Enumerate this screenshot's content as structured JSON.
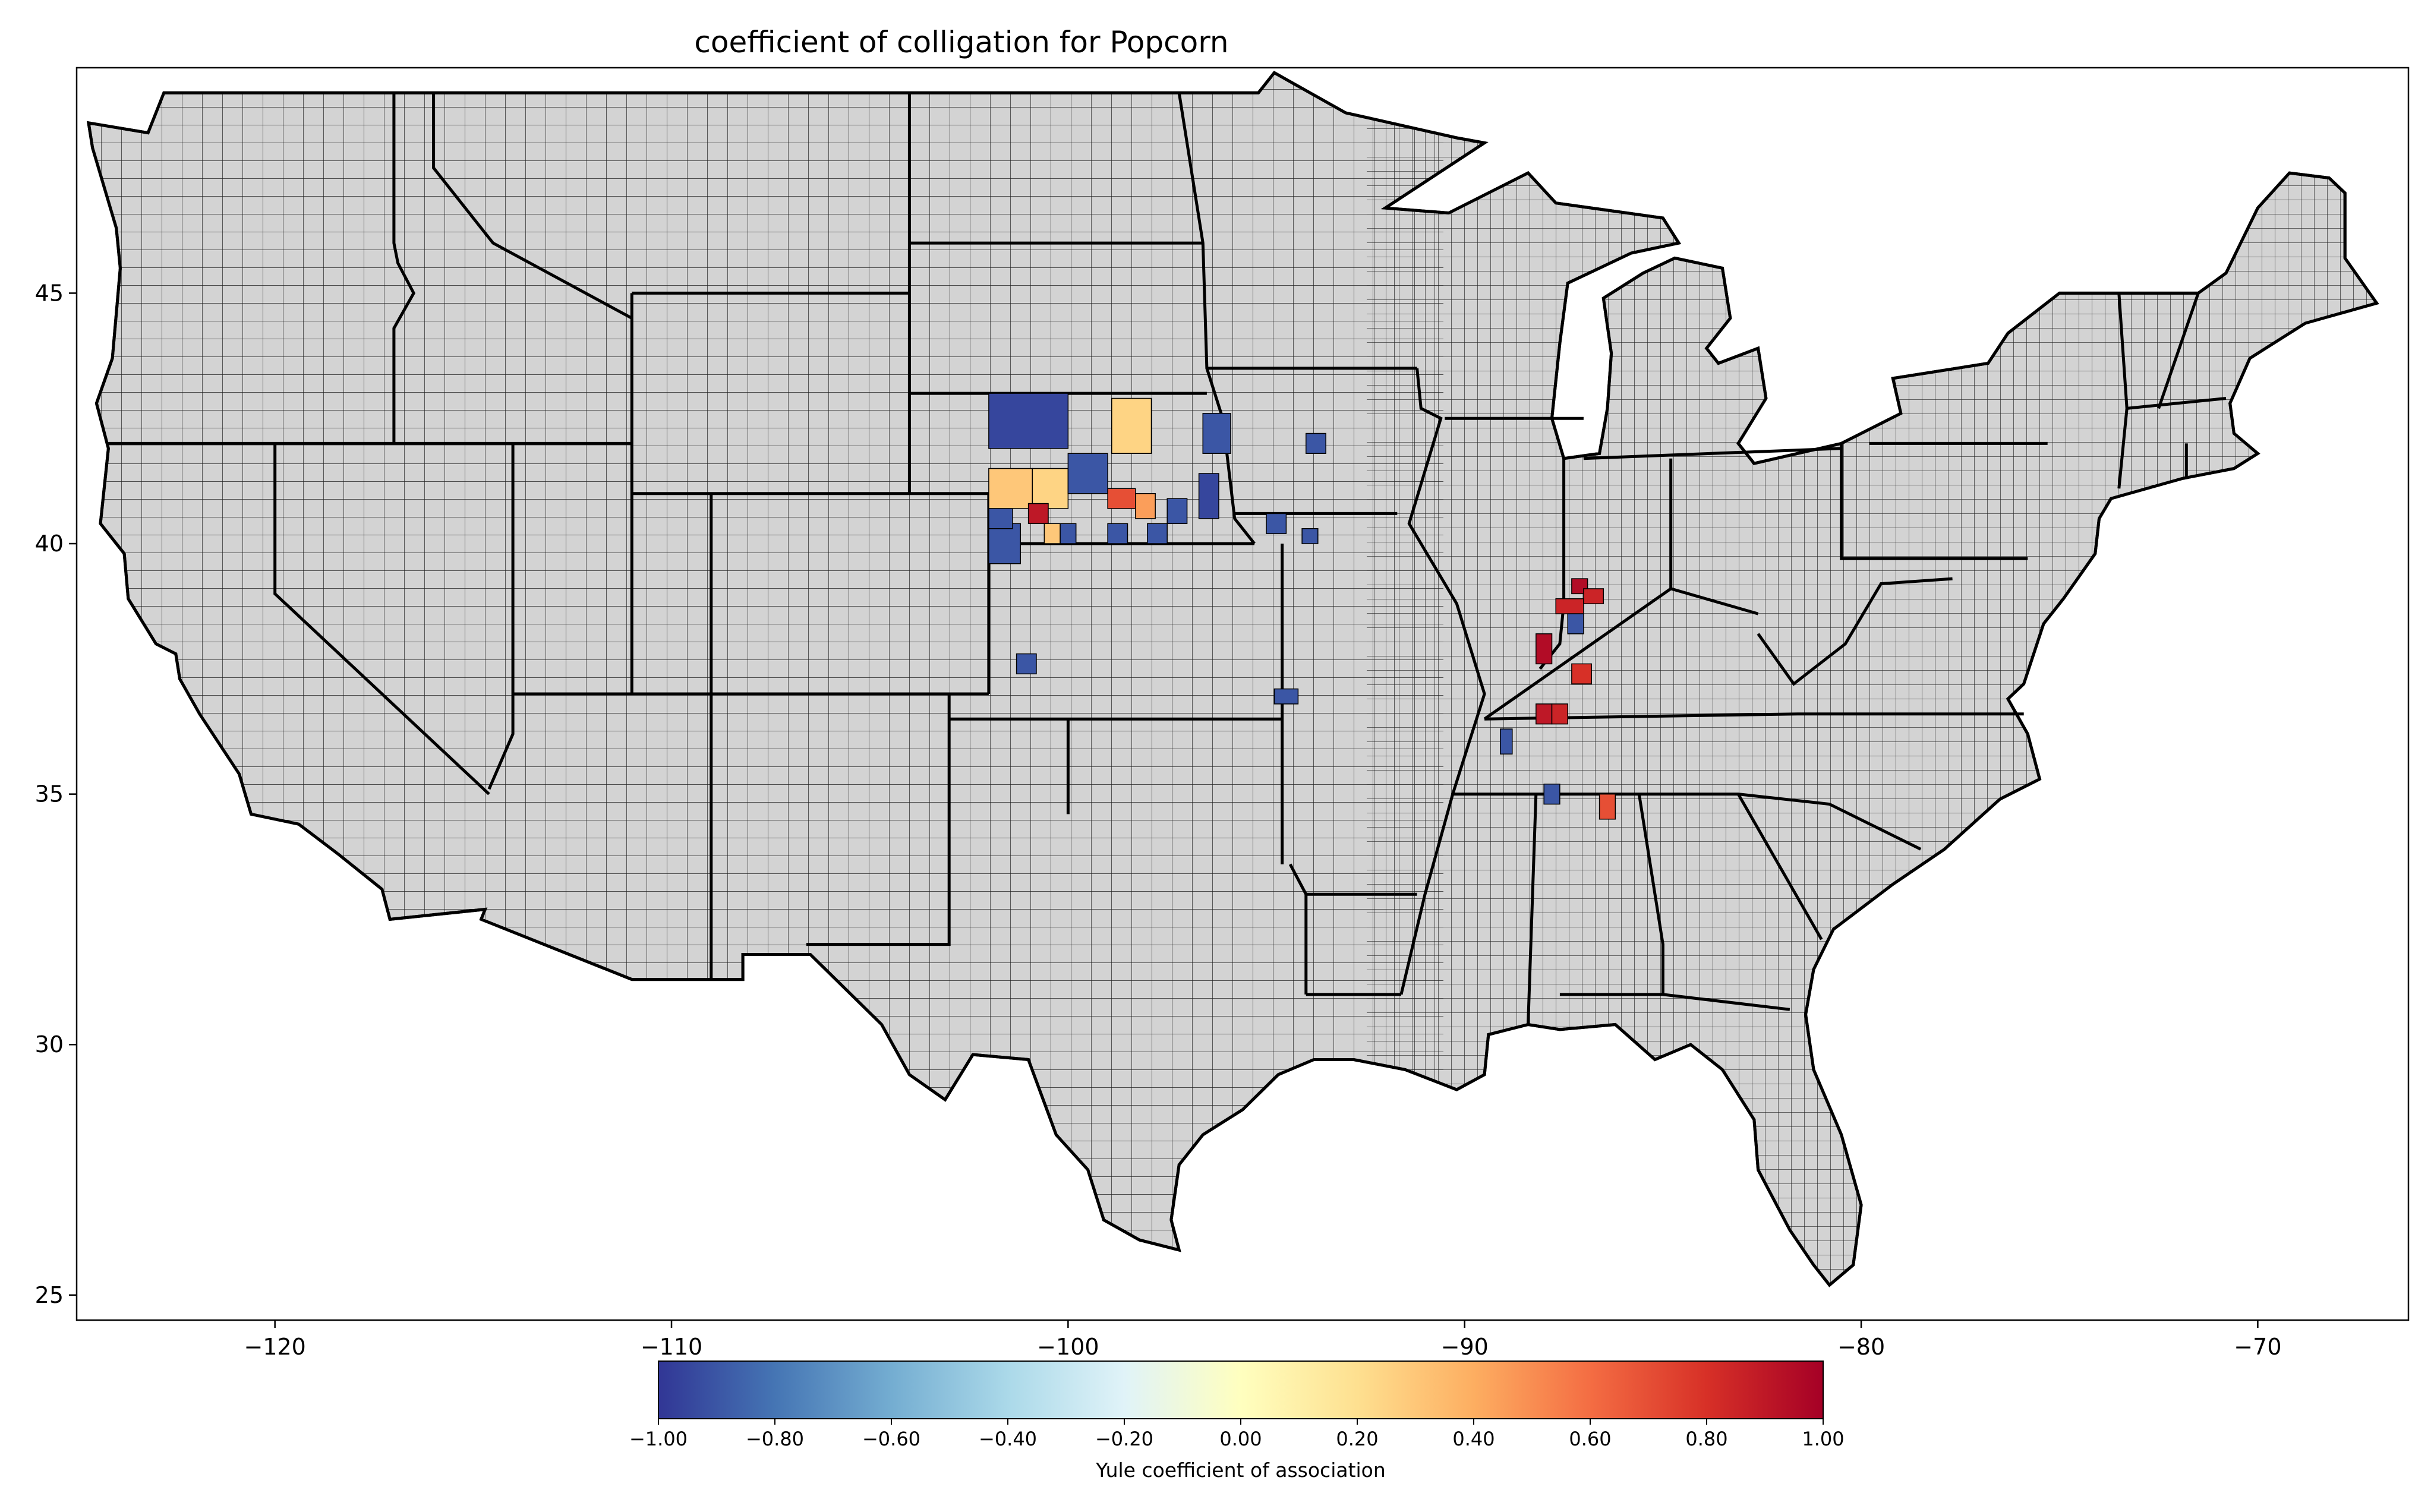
{
  "title": "coefficient of colligation for Popcorn",
  "map": {
    "x_range": [
      -125,
      -66.2
    ],
    "y_range": [
      24.5,
      49.5
    ],
    "x_ticks": [
      -120,
      -110,
      -100,
      -90,
      -80,
      -70
    ],
    "x_tick_labels": [
      "−120",
      "−110",
      "−100",
      "−90",
      "−80",
      "−70"
    ],
    "y_ticks": [
      25,
      30,
      35,
      40,
      45
    ],
    "y_tick_labels": [
      "25",
      "30",
      "35",
      "40",
      "45"
    ],
    "base_fill": "#d3d3d3",
    "border_color": "#000000",
    "highlighted_counties": [
      {
        "lon": [
          -102.0,
          -100.0
        ],
        "lat": [
          41.9,
          43.0
        ],
        "value": -0.95
      },
      {
        "lon": [
          -98.9,
          -97.9
        ],
        "lat": [
          41.8,
          42.9
        ],
        "value": 0.25
      },
      {
        "lon": [
          -102.0,
          -100.9
        ],
        "lat": [
          40.7,
          41.5
        ],
        "value": 0.3
      },
      {
        "lon": [
          -100.9,
          -100.0
        ],
        "lat": [
          40.7,
          41.5
        ],
        "value": 0.25
      },
      {
        "lon": [
          -100.0,
          -99.0
        ],
        "lat": [
          41.0,
          41.8
        ],
        "value": -0.9
      },
      {
        "lon": [
          -99.0,
          -98.3
        ],
        "lat": [
          40.7,
          41.1
        ],
        "value": 0.7
      },
      {
        "lon": [
          -98.3,
          -97.8
        ],
        "lat": [
          40.5,
          41.0
        ],
        "value": 0.45
      },
      {
        "lon": [
          -101.0,
          -100.5
        ],
        "lat": [
          40.4,
          40.8
        ],
        "value": 0.9
      },
      {
        "lon": [
          -102.0,
          -101.2
        ],
        "lat": [
          39.6,
          40.4
        ],
        "value": -0.9
      },
      {
        "lon": [
          -102.0,
          -101.4
        ],
        "lat": [
          40.3,
          40.7
        ],
        "value": -0.9
      },
      {
        "lon": [
          -100.2,
          -99.8
        ],
        "lat": [
          40.0,
          40.4
        ],
        "value": -0.9
      },
      {
        "lon": [
          -100.6,
          -100.2
        ],
        "lat": [
          40.0,
          40.4
        ],
        "value": 0.3
      },
      {
        "lon": [
          -99.0,
          -98.5
        ],
        "lat": [
          40.0,
          40.4
        ],
        "value": -0.9
      },
      {
        "lon": [
          -98.0,
          -97.5
        ],
        "lat": [
          40.0,
          40.4
        ],
        "value": -0.9
      },
      {
        "lon": [
          -97.5,
          -97.0
        ],
        "lat": [
          40.4,
          40.9
        ],
        "value": -0.9
      },
      {
        "lon": [
          -96.7,
          -96.2
        ],
        "lat": [
          40.5,
          41.4
        ],
        "value": -0.95
      },
      {
        "lon": [
          -96.6,
          -95.9
        ],
        "lat": [
          41.8,
          42.6
        ],
        "value": -0.9
      },
      {
        "lon": [
          -94.0,
          -93.5
        ],
        "lat": [
          41.8,
          42.2
        ],
        "value": -0.9
      },
      {
        "lon": [
          -95.0,
          -94.5
        ],
        "lat": [
          40.2,
          40.6
        ],
        "value": -0.9
      },
      {
        "lon": [
          -94.1,
          -93.7
        ],
        "lat": [
          40.0,
          40.3
        ],
        "value": -0.9
      },
      {
        "lon": [
          -101.3,
          -100.8
        ],
        "lat": [
          37.4,
          37.8
        ],
        "value": -0.9
      },
      {
        "lon": [
          -94.8,
          -94.2
        ],
        "lat": [
          36.8,
          37.1
        ],
        "value": -0.9
      },
      {
        "lon": [
          -88.2,
          -87.8
        ],
        "lat": [
          37.6,
          38.2
        ],
        "value": 0.95
      },
      {
        "lon": [
          -87.7,
          -87.0
        ],
        "lat": [
          38.6,
          38.9
        ],
        "value": 0.85
      },
      {
        "lon": [
          -87.3,
          -86.9
        ],
        "lat": [
          39.0,
          39.3
        ],
        "value": 0.95
      },
      {
        "lon": [
          -87.0,
          -86.5
        ],
        "lat": [
          38.8,
          39.1
        ],
        "value": 0.85
      },
      {
        "lon": [
          -87.4,
          -87.0
        ],
        "lat": [
          38.2,
          38.6
        ],
        "value": -0.9
      },
      {
        "lon": [
          -87.3,
          -86.8
        ],
        "lat": [
          37.2,
          37.6
        ],
        "value": 0.8
      },
      {
        "lon": [
          -88.2,
          -87.8
        ],
        "lat": [
          36.4,
          36.8
        ],
        "value": 0.9
      },
      {
        "lon": [
          -87.8,
          -87.4
        ],
        "lat": [
          36.4,
          36.8
        ],
        "value": 0.85
      },
      {
        "lon": [
          -89.1,
          -88.8
        ],
        "lat": [
          35.8,
          36.3
        ],
        "value": -0.9
      },
      {
        "lon": [
          -88.0,
          -87.6
        ],
        "lat": [
          34.8,
          35.2
        ],
        "value": -0.9
      },
      {
        "lon": [
          -86.6,
          -86.2
        ],
        "lat": [
          34.5,
          35.0
        ],
        "value": 0.7
      }
    ]
  },
  "colorbar": {
    "label": "Yule coefficient of association",
    "min": -1.0,
    "max": 1.0,
    "ticks": [
      "−1.00",
      "−0.80",
      "−0.60",
      "−0.40",
      "−0.20",
      "0.00",
      "0.20",
      "0.40",
      "0.60",
      "0.80",
      "1.00"
    ],
    "colors": [
      "#313695",
      "#4575b4",
      "#74add1",
      "#abd9e9",
      "#e0f3f8",
      "#ffffbf",
      "#fee090",
      "#fdae61",
      "#f46d43",
      "#d73027",
      "#a50026"
    ]
  }
}
